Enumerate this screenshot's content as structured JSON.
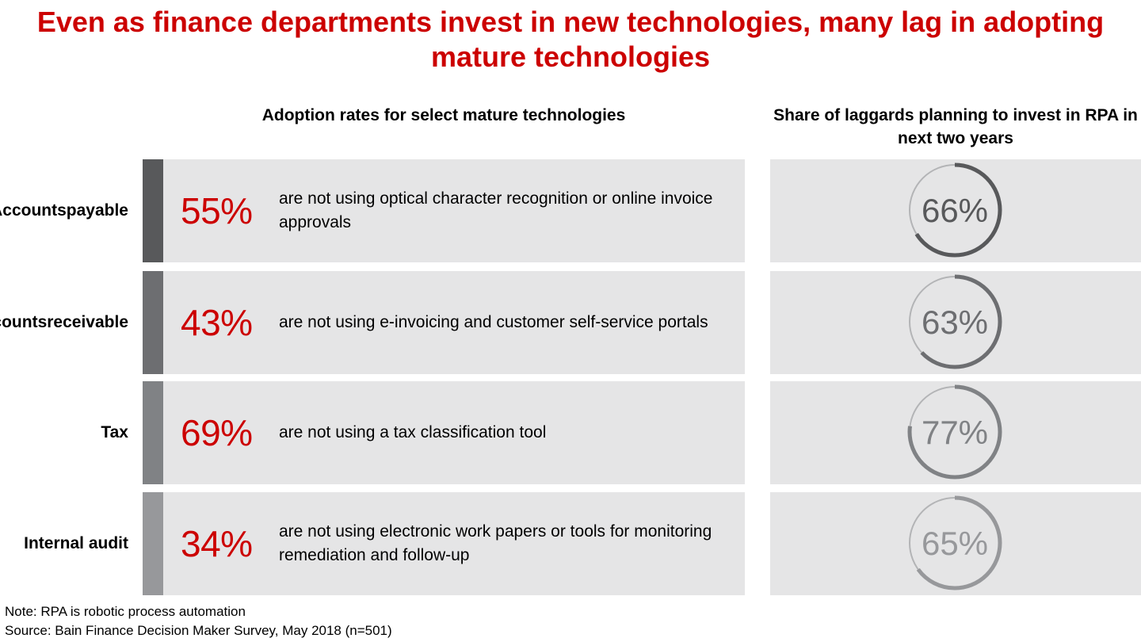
{
  "title": "Even as finance departments invest in new technologies, many lag in adopting mature technologies",
  "left_header": "Adoption rates for select mature technologies",
  "right_header": "Share of laggards planning to invest in RPA in next two years",
  "chart_data": {
    "type": "table",
    "rows": [
      {
        "label_lines": [
          "Accounts",
          "payable"
        ],
        "not_using_pct": 55,
        "not_using_text": "55%",
        "description": "are not using optical character recognition or online invoice approvals",
        "rpa_plan_pct": 66,
        "rpa_plan_text": "66%",
        "color": "#58595b"
      },
      {
        "label_lines": [
          "Accounts",
          "receivable"
        ],
        "not_using_pct": 43,
        "not_using_text": "43%",
        "description": "are not using e-invoicing and customer self-service portals",
        "rpa_plan_pct": 63,
        "rpa_plan_text": "63%",
        "color": "#6d6e71"
      },
      {
        "label_lines": [
          "Tax"
        ],
        "not_using_pct": 69,
        "not_using_text": "69%",
        "description": "are not using a tax classification tool",
        "rpa_plan_pct": 77,
        "rpa_plan_text": "77%",
        "color": "#808285"
      },
      {
        "label_lines": [
          "Internal audit"
        ],
        "not_using_pct": 34,
        "not_using_text": "34%",
        "description": "are not using electronic work papers or tools for monitoring remediation and follow-up",
        "rpa_plan_pct": 65,
        "rpa_plan_text": "65%",
        "color": "#97989b"
      }
    ]
  },
  "footer": {
    "note": "Note: RPA is robotic process automation",
    "source": "Source: Bain Finance Decision Maker Survey, May 2018 (n=501)"
  },
  "colors": {
    "accent_red": "#cc0000",
    "panel_bg": "#e5e5e6",
    "track": "#b3b4b6"
  }
}
